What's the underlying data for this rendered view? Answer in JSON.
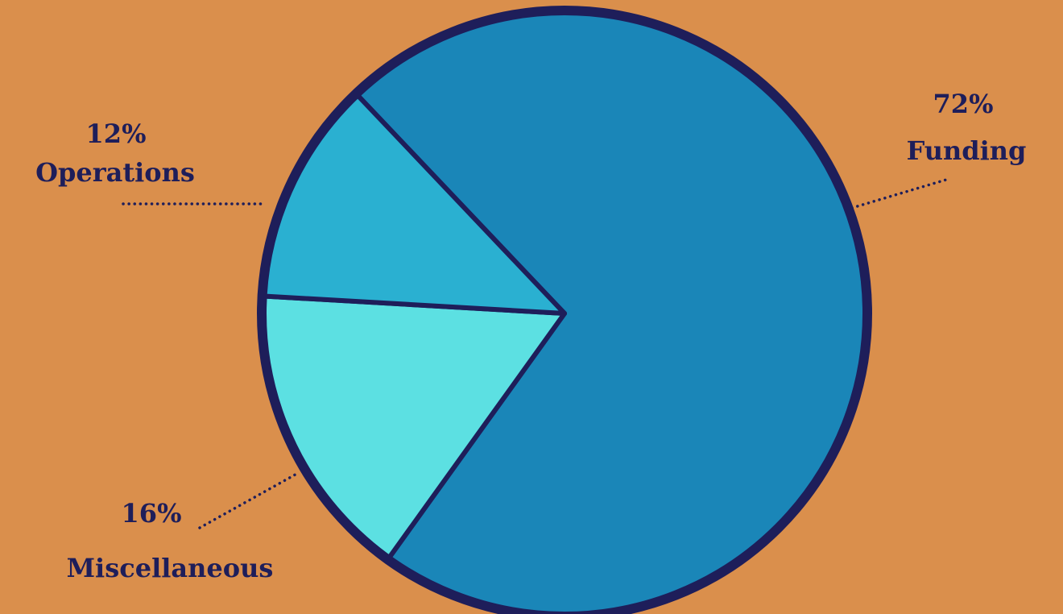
{
  "chart_data": {
    "type": "pie",
    "title": "",
    "legend": "none",
    "slices": [
      {
        "label": "Funding",
        "value": 72,
        "value_label": "72%",
        "color": "#1A86B8"
      },
      {
        "label": "Operations",
        "value": 12,
        "value_label": "12%",
        "color": "#2AB0D1"
      },
      {
        "label": "Miscellaneous",
        "value": 16,
        "value_label": "16%",
        "color": "#5CE0E2"
      }
    ]
  },
  "style": {
    "background": "#DA8F4C",
    "outline": "#1E1E5A",
    "label_color": "#1E1E5A"
  }
}
